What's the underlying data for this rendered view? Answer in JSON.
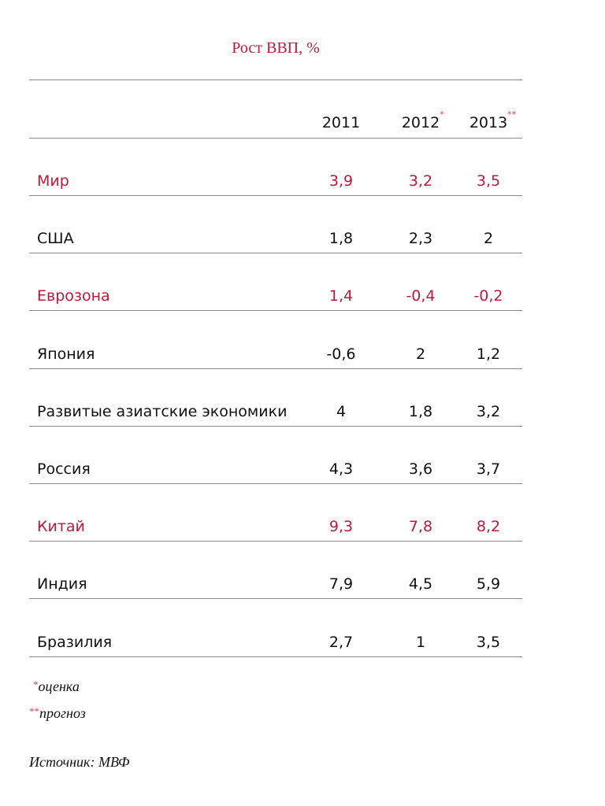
{
  "chart_data": {
    "type": "table",
    "title": "Рост ВВП, %",
    "columns": [
      "2011",
      "2012",
      "2013"
    ],
    "column_marks": [
      "",
      "*",
      "**"
    ],
    "rows": [
      {
        "label": "Мир",
        "values": [
          "3,9",
          "3,2",
          "3,5"
        ],
        "highlight": true
      },
      {
        "label": "США",
        "values": [
          "1,8",
          "2,3",
          "2"
        ],
        "highlight": false
      },
      {
        "label": "Еврозона",
        "values": [
          "1,4",
          "-0,4",
          "-0,2"
        ],
        "highlight": true
      },
      {
        "label": "Япония",
        "values": [
          "-0,6",
          "2",
          "1,2"
        ],
        "highlight": false
      },
      {
        "label": "Развитые азиатские экономики",
        "values": [
          "4",
          "1,8",
          "3,2"
        ],
        "highlight": false
      },
      {
        "label": "Россия",
        "values": [
          "4,3",
          "3,6",
          "3,7"
        ],
        "highlight": false
      },
      {
        "label": "Китай",
        "values": [
          "9,3",
          "7,8",
          "8,2"
        ],
        "highlight": true
      },
      {
        "label": "Индия",
        "values": [
          "7,9",
          "4,5",
          "5,9"
        ],
        "highlight": false
      },
      {
        "label": "Бразилия",
        "values": [
          "2,7",
          "1",
          "3,5"
        ],
        "highlight": false
      }
    ]
  },
  "notes": {
    "estimate_mark": "*",
    "estimate": "оценка",
    "forecast_mark": "**",
    "forecast": "прогноз",
    "source": "Источник: МВФ"
  },
  "colors": {
    "accent": "#c0183a",
    "rule": "#8a8a8a"
  }
}
